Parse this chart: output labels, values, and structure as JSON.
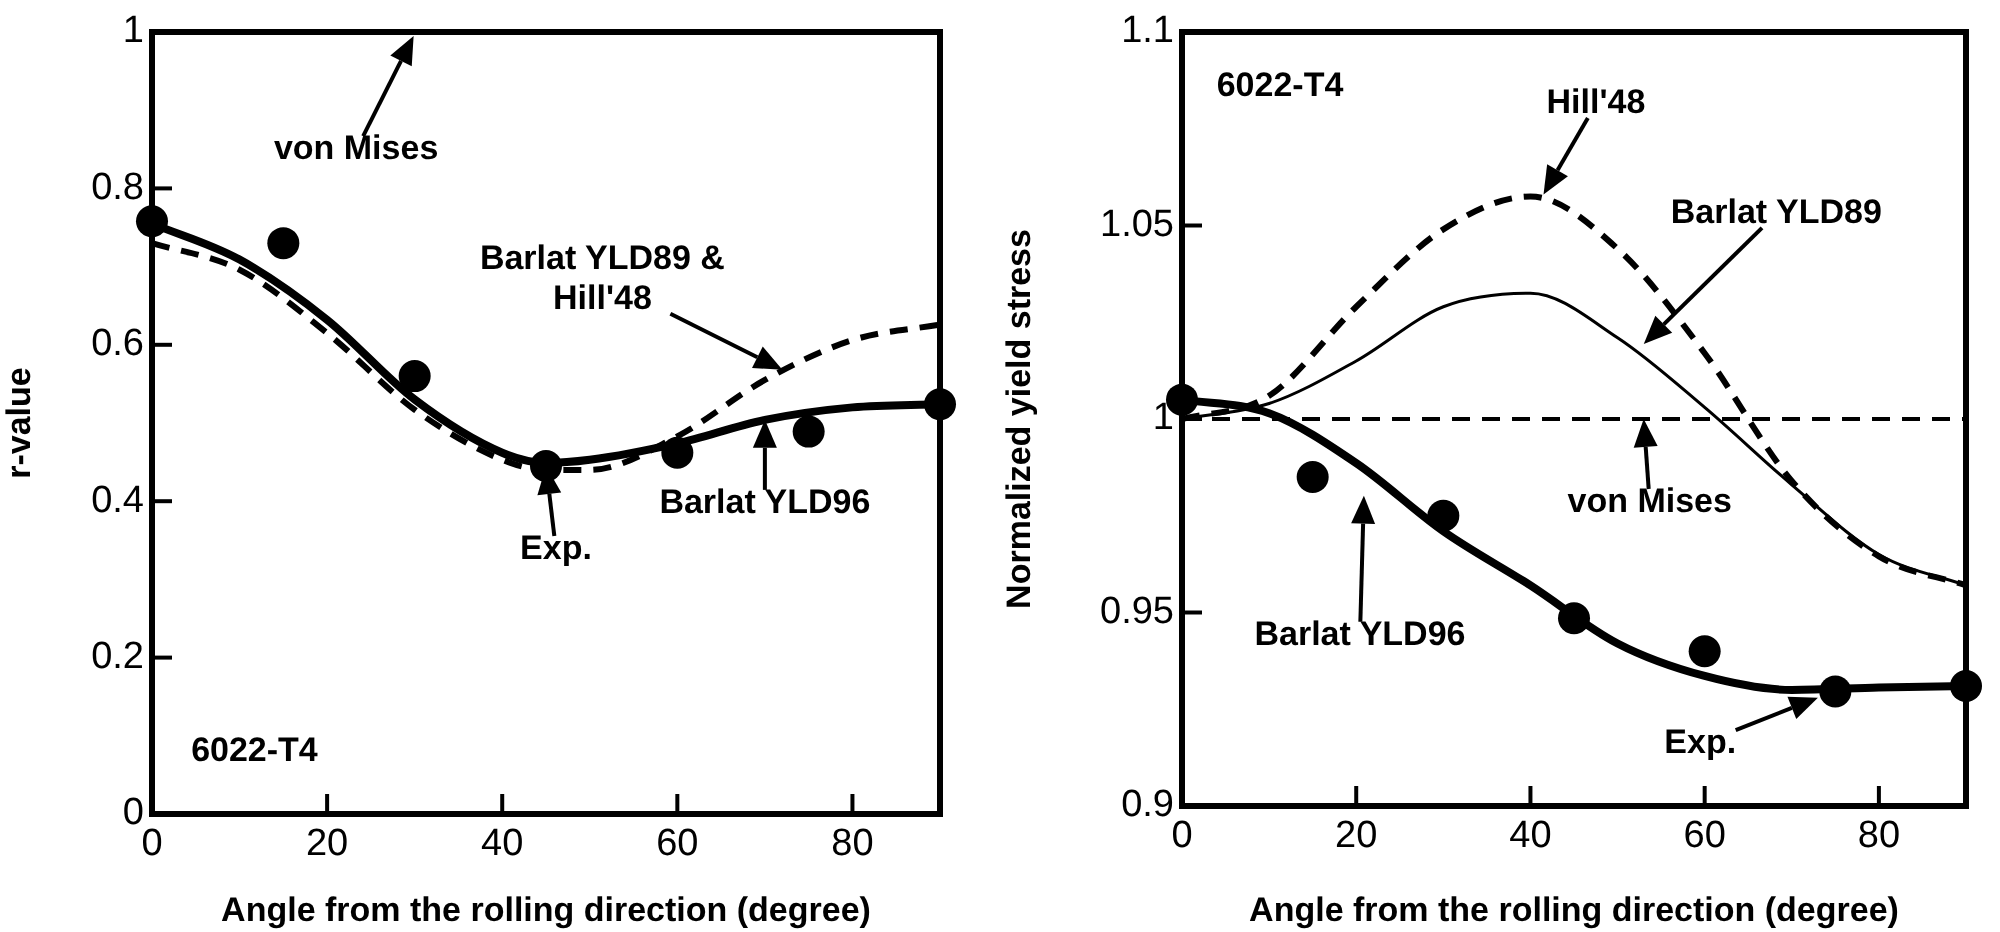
{
  "chart_data": [
    {
      "type": "line",
      "xlabel": "Angle from the rolling direction (degree)",
      "ylabel": "r-value",
      "xlim": [
        0,
        90
      ],
      "xticks": [
        0,
        20,
        40,
        60,
        80
      ],
      "ylim": [
        0,
        1
      ],
      "yticks": [
        0,
        0.2,
        0.4,
        0.6,
        0.8,
        1
      ],
      "grid": false,
      "legend": false,
      "series": [
        {
          "type": "scatter",
          "color": "#000000",
          "marker": "circle",
          "x": [
            0,
            15,
            30,
            45,
            60,
            75,
            90
          ],
          "values": [
            0.758,
            0.73,
            0.56,
            0.445,
            0.462,
            0.489,
            0.524
          ]
        },
        {
          "color": "#000000",
          "line_style": "solid",
          "marker": "none",
          "x": [
            0,
            10,
            20,
            30,
            40,
            45,
            50,
            60,
            70,
            80,
            90
          ],
          "values": [
            0.755,
            0.709,
            0.632,
            0.53,
            0.462,
            0.449,
            0.453,
            0.474,
            0.504,
            0.52,
            0.524
          ]
        },
        {
          "color": "#000000",
          "line_style": "dashed",
          "marker": "none",
          "x": [
            0,
            10,
            20,
            30,
            40,
            45,
            50,
            60,
            70,
            80,
            90
          ],
          "values": [
            0.73,
            0.696,
            0.615,
            0.517,
            0.453,
            0.44,
            0.44,
            0.483,
            0.555,
            0.606,
            0.626
          ]
        }
      ],
      "annotations": [
        "von Mises",
        {
          "text": "Barlat YLD89 & Hill'48",
          "x": 72,
          "y": 0.568
        },
        {
          "text": "Exp.",
          "x": 45,
          "y": 0.445
        },
        {
          "text": "Barlat YLD96",
          "x": 70,
          "y": 0.504
        },
        "6022-T4"
      ]
    },
    {
      "type": "line",
      "xlabel": "Angle from the rolling direction (degree)",
      "ylabel": "Normalized yield stress",
      "xlim": [
        0,
        90
      ],
      "xticks": [
        0,
        20,
        40,
        60,
        80
      ],
      "ylim": [
        0.9,
        1.1
      ],
      "yticks": [
        0.9,
        0.95,
        1,
        1.05,
        1.1
      ],
      "grid": false,
      "legend": false,
      "series": [
        {
          "type": "scatter",
          "color": "#000000",
          "marker": "circle",
          "x": [
            0,
            15,
            30,
            45,
            60,
            75,
            90
          ],
          "values": [
            1.005,
            0.985,
            0.975,
            0.9485,
            0.94,
            0.9296,
            0.931
          ]
        },
        {
          "color": "#000000",
          "line_style": "solid",
          "marker": "none",
          "x": [
            0,
            10,
            20,
            30,
            40,
            50,
            60,
            70,
            80,
            90
          ],
          "values": [
            1.005,
            1.0015,
            0.9886,
            0.971,
            0.957,
            0.942,
            0.9336,
            0.93,
            0.9306,
            0.931
          ]
        },
        {
          "color": "#000000",
          "line_style": "solid",
          "marker": "none",
          "x": [
            0,
            10,
            20,
            30,
            40,
            50,
            60,
            70,
            80,
            90
          ],
          "values": [
            1.0,
            1.004,
            1.015,
            1.029,
            1.0325,
            1.021,
            1.003,
            0.983,
            0.965,
            0.957
          ]
        },
        {
          "color": "#000000",
          "line_style": "dashed",
          "marker": "none",
          "x": [
            0,
            10,
            20,
            30,
            40,
            50,
            60,
            70,
            80,
            90
          ],
          "values": [
            1.0,
            1.006,
            1.029,
            1.049,
            1.0575,
            1.044,
            1.017,
            0.984,
            0.9645,
            0.957
          ]
        },
        {
          "color": "#000000",
          "line_style": "dashed",
          "marker": "none",
          "x": [
            0,
            90
          ],
          "values": [
            1,
            1
          ]
        }
      ],
      "annotations": [
        "6022-T4",
        {
          "text": "Hill'48",
          "x": 41.5,
          "y": 1.058
        },
        "Barlat YLD89",
        {
          "text": "von Mises",
          "x": 53,
          "y": 1.0
        },
        "Barlat YLD96",
        {
          "text": "Exp.",
          "x": 73,
          "y": 0.928
        }
      ]
    }
  ]
}
